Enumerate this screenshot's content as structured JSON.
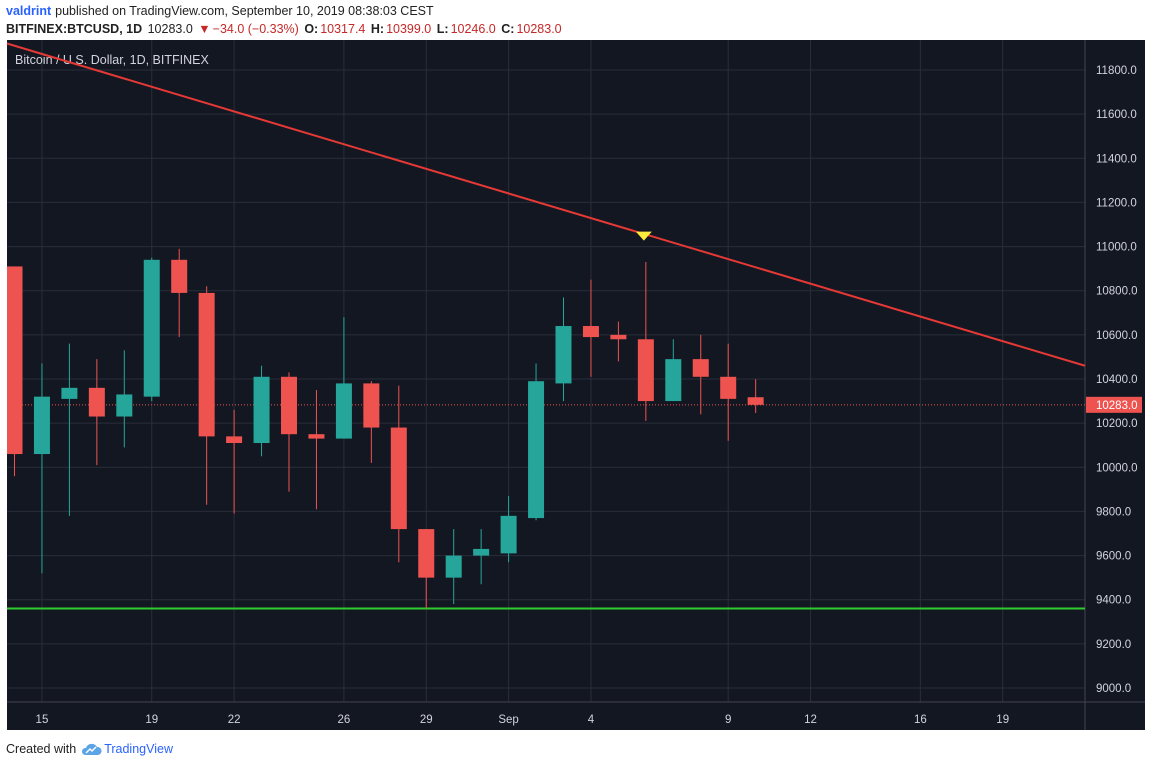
{
  "header": {
    "author": "valdrint",
    "published": "published on TradingView.com, September 10, 2019 08:38:03 CEST"
  },
  "quote": {
    "symbol": "BITFINEX:BTCUSD, 1D",
    "last": "10283.0",
    "change": "−34.0 (−0.33%)",
    "o_label": "O:",
    "o": "10317.4",
    "h_label": "H:",
    "h": "10399.0",
    "l_label": "L:",
    "l": "10246.0",
    "c_label": "C:",
    "c": "10283.0"
  },
  "footer": {
    "created_with": "Created with",
    "brand": "TradingView"
  },
  "colors": {
    "background": "#131722",
    "grid": "#2a2e39",
    "up": "#26a69a",
    "down": "#ef5350",
    "resistance": "#e53935",
    "support": "#2ecc2e",
    "marker": "#ffeb3b"
  },
  "chart_data": {
    "type": "candlestick",
    "title": "Bitcoin / U.S. Dollar, 1D, BITFINEX",
    "ylim": [
      8900,
      11900
    ],
    "yticks": [
      "9000.0",
      "9200.0",
      "9400.0",
      "9600.0",
      "9800.0",
      "10000.0",
      "10200.0",
      "10400.0",
      "10600.0",
      "10800.0",
      "11000.0",
      "11200.0",
      "11400.0",
      "11600.0",
      "11800.0"
    ],
    "xticks": [
      {
        "index": 1,
        "label": "15"
      },
      {
        "index": 5,
        "label": "19"
      },
      {
        "index": 8,
        "label": "22"
      },
      {
        "index": 12,
        "label": "26"
      },
      {
        "index": 15,
        "label": "29"
      },
      {
        "index": 18,
        "label": "Sep"
      },
      {
        "index": 21,
        "label": "4"
      },
      {
        "index": 26,
        "label": "9"
      },
      {
        "index": 29,
        "label": "12"
      },
      {
        "index": 33,
        "label": "16"
      },
      {
        "index": 36,
        "label": "19"
      }
    ],
    "candles": [
      {
        "o": 10910,
        "h": 10910,
        "l": 9960,
        "c": 10060
      },
      {
        "o": 10060,
        "h": 10470,
        "l": 9520,
        "c": 10320
      },
      {
        "o": 10310,
        "h": 10560,
        "l": 9780,
        "c": 10360
      },
      {
        "o": 10360,
        "h": 10490,
        "l": 10010,
        "c": 10230
      },
      {
        "o": 10230,
        "h": 10530,
        "l": 10090,
        "c": 10330
      },
      {
        "o": 10320,
        "h": 10950,
        "l": 10300,
        "c": 10940
      },
      {
        "o": 10940,
        "h": 10990,
        "l": 10590,
        "c": 10790
      },
      {
        "o": 10790,
        "h": 10820,
        "l": 9830,
        "c": 10140
      },
      {
        "o": 10140,
        "h": 10260,
        "l": 9790,
        "c": 10110
      },
      {
        "o": 10110,
        "h": 10460,
        "l": 10050,
        "c": 10410
      },
      {
        "o": 10410,
        "h": 10430,
        "l": 9890,
        "c": 10150
      },
      {
        "o": 10150,
        "h": 10350,
        "l": 9810,
        "c": 10130
      },
      {
        "o": 10130,
        "h": 10680,
        "l": 10130,
        "c": 10380
      },
      {
        "o": 10380,
        "h": 10390,
        "l": 10020,
        "c": 10180
      },
      {
        "o": 10180,
        "h": 10370,
        "l": 9570,
        "c": 9720
      },
      {
        "o": 9720,
        "h": 9720,
        "l": 9360,
        "c": 9500
      },
      {
        "o": 9500,
        "h": 9720,
        "l": 9380,
        "c": 9600
      },
      {
        "o": 9600,
        "h": 9720,
        "l": 9470,
        "c": 9630
      },
      {
        "o": 9610,
        "h": 9870,
        "l": 9570,
        "c": 9780
      },
      {
        "o": 9770,
        "h": 10470,
        "l": 9760,
        "c": 10390
      },
      {
        "o": 10380,
        "h": 10770,
        "l": 10300,
        "c": 10640
      },
      {
        "o": 10640,
        "h": 10850,
        "l": 10410,
        "c": 10590
      },
      {
        "o": 10600,
        "h": 10660,
        "l": 10480,
        "c": 10580
      },
      {
        "o": 10580,
        "h": 10930,
        "l": 10210,
        "c": 10300
      },
      {
        "o": 10300,
        "h": 10580,
        "l": 10300,
        "c": 10490
      },
      {
        "o": 10490,
        "h": 10600,
        "l": 10240,
        "c": 10410
      },
      {
        "o": 10410,
        "h": 10560,
        "l": 10120,
        "c": 10310
      },
      {
        "o": 10317.4,
        "h": 10399,
        "l": 10246,
        "c": 10283
      }
    ],
    "last_price": 10283.0,
    "resistance_line": {
      "from": {
        "index": 0,
        "price": 11920
      },
      "to": {
        "index": 39,
        "price": 10460
      }
    },
    "support_level": 9360,
    "marker": {
      "index": 23,
      "price": 11045
    }
  }
}
